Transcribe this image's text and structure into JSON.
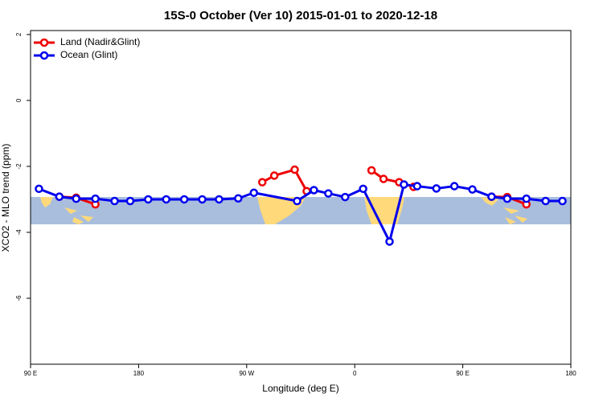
{
  "chart_data": {
    "type": "line",
    "title": "15S-0 October (Ver 10)   2015-01-01 to 2020-12-18",
    "x_label": "Longitude (deg E)",
    "y_label": "XCO2 - MLO trend (ppm)",
    "xlim": [
      90,
      540
    ],
    "xticks": [
      {
        "value": 90,
        "label": "90 E"
      },
      180,
      {
        "value": 270,
        "label": "90 W"
      },
      {
        "value": 360,
        "label": "0"
      },
      {
        "value": 450,
        "label": "90 E"
      },
      {
        "value": 540,
        "label": "180"
      }
    ],
    "ylim": [
      -8,
      2.12
    ],
    "yticks": [
      -6,
      -4,
      -2,
      0,
      2
    ],
    "legend": "top-left",
    "series": [
      {
        "name": "Land (Nadir&Glint)",
        "color": "#ee0000",
        "x": [
          114,
          128,
          144,
          null,
          283,
          293,
          310,
          320,
          null,
          374,
          384,
          397,
          409,
          null,
          474,
          487,
          503
        ],
        "values": [
          -2.92,
          -2.95,
          -3.15,
          null,
          -2.48,
          -2.28,
          -2.1,
          -2.75,
          null,
          -2.12,
          -2.38,
          -2.48,
          -2.62,
          null,
          -2.92,
          -2.93,
          -3.15
        ]
      },
      {
        "name": "Ocean (Glint)",
        "color": "#0000ee",
        "x": [
          97,
          114,
          128,
          144,
          160,
          173,
          188,
          203,
          218,
          233,
          247,
          263,
          276,
          312,
          326,
          338,
          352,
          367,
          389,
          401,
          412,
          428,
          443,
          458,
          474,
          487,
          503,
          519,
          533
        ],
        "values": [
          -2.68,
          -2.92,
          -2.98,
          -2.98,
          -3.05,
          -3.05,
          -3.0,
          -3.0,
          -3.0,
          -3.0,
          -3.0,
          -2.97,
          -2.8,
          -3.05,
          -2.72,
          -2.82,
          -2.93,
          -2.68,
          -4.28,
          -2.55,
          -2.6,
          -2.67,
          -2.6,
          -2.7,
          -2.92,
          -2.98,
          -2.98,
          -3.05,
          -3.05
        ]
      }
    ]
  }
}
